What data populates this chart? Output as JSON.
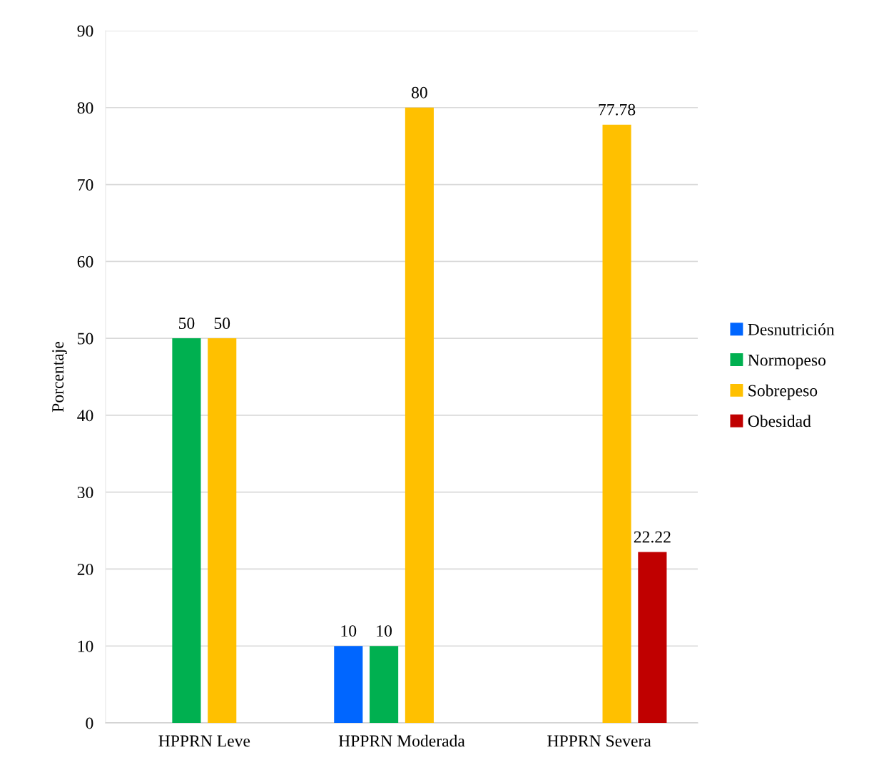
{
  "chart_data": {
    "type": "bar",
    "ylabel": "Porcentaje",
    "categories": [
      "HPPRN Leve",
      "HPPRN Moderada",
      "HPPRN Severa"
    ],
    "series": [
      {
        "name": "Desnutrición",
        "color": "#0066ff",
        "values": [
          null,
          10,
          null
        ]
      },
      {
        "name": "Normopeso",
        "color": "#00b050",
        "values": [
          50,
          10,
          null
        ]
      },
      {
        "name": "Sobrepeso",
        "color": "#ffc000",
        "values": [
          50,
          80,
          77.78
        ]
      },
      {
        "name": "Obesidad",
        "color": "#c00000",
        "values": [
          null,
          null,
          22.22
        ]
      }
    ],
    "ylim": [
      0,
      90
    ],
    "yticks": [
      0,
      10,
      20,
      30,
      40,
      50,
      60,
      70,
      80,
      90
    ],
    "grid": "y",
    "legend": "right",
    "data_labels": true
  }
}
